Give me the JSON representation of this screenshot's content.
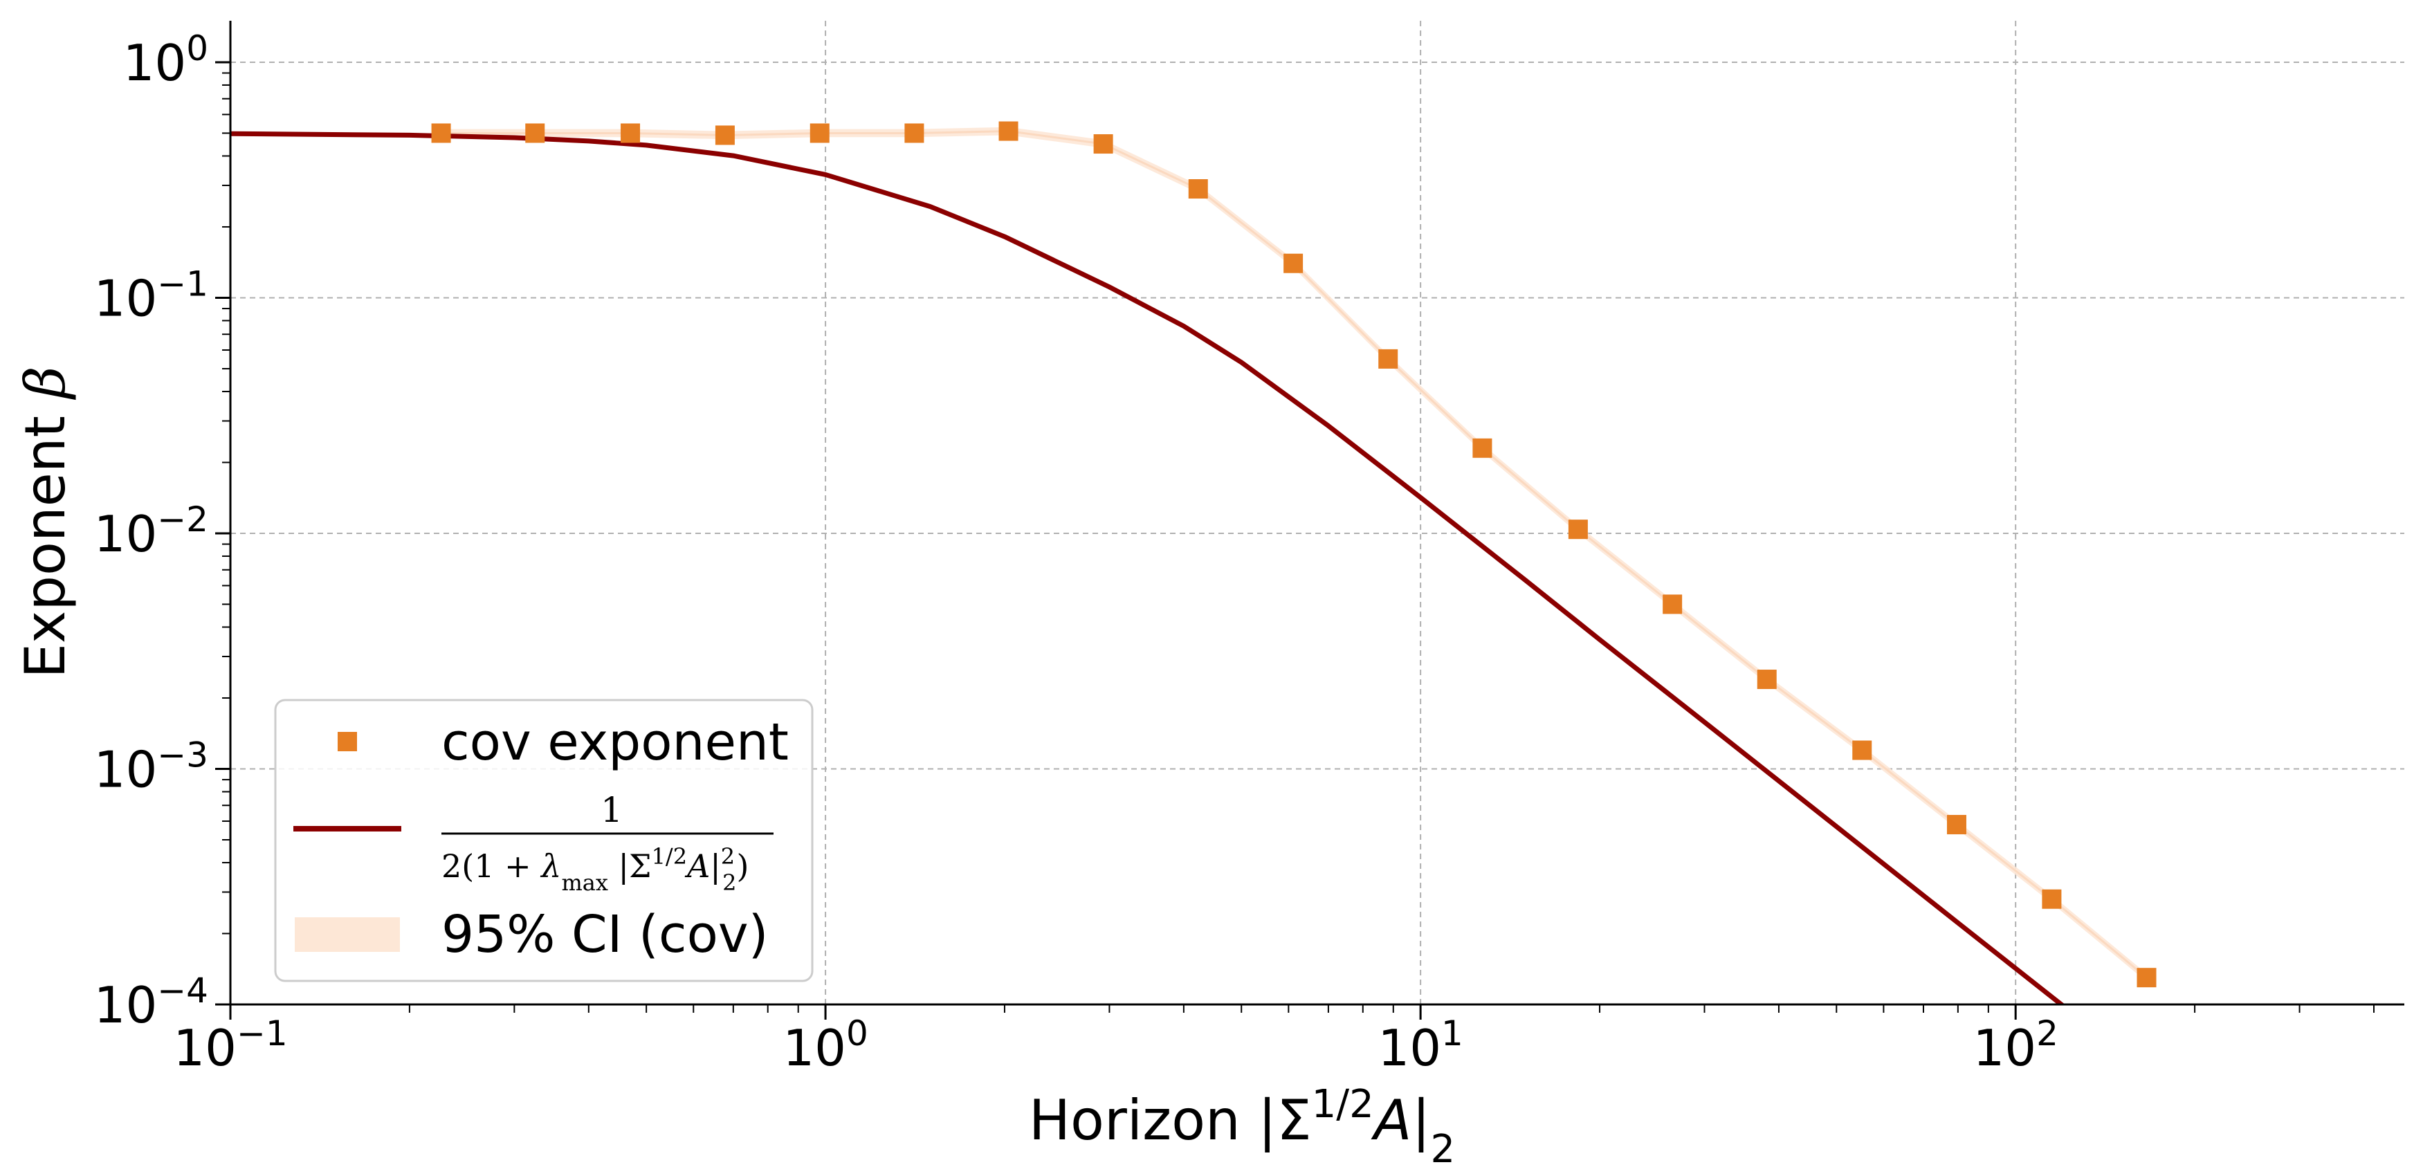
{
  "chart_data": {
    "type": "line",
    "xscale": "log",
    "yscale": "log",
    "xlabel": "Horizon |Σ1/2A|2",
    "ylabel": "Exponent β",
    "xlim": [
      0.1,
      450
    ],
    "ylim": [
      0.0001,
      1.5
    ],
    "x_ticks": [
      "10−1",
      "100",
      "101",
      "102"
    ],
    "y_ticks": [
      "10−4",
      "10−3",
      "10−2",
      "10−1",
      "100"
    ],
    "grid": true,
    "legend_position": "lower-left",
    "series": [
      {
        "name": "cov exponent",
        "kind": "markers",
        "marker": "square",
        "color": "#e67e22",
        "x": [
          0.226,
          0.325,
          0.47,
          0.678,
          0.978,
          1.41,
          2.03,
          2.93,
          4.23,
          6.11,
          8.82,
          12.7,
          18.4,
          26.5,
          38.2,
          55.2,
          79.6,
          115,
          166
        ],
        "y": [
          0.5,
          0.5,
          0.5,
          0.49,
          0.5,
          0.5,
          0.51,
          0.45,
          0.29,
          0.14,
          0.055,
          0.023,
          0.0104,
          0.005,
          0.0024,
          0.0012,
          0.00058,
          0.00028,
          0.00013
        ]
      },
      {
        "name": "1 / 2(1 + λmax |Σ1/2A|22)",
        "kind": "line",
        "color": "#8b0000",
        "x": [
          0.1,
          0.2,
          0.3,
          0.4,
          0.5,
          0.7,
          1,
          1.5,
          2,
          3,
          4,
          5,
          7,
          10,
          15,
          20,
          30,
          50,
          80,
          130
        ],
        "y": [
          0.4975,
          0.4901,
          0.4785,
          0.463,
          0.4444,
          0.401,
          0.3333,
          0.2439,
          0.1818,
          0.1111,
          0.0758,
          0.0532,
          0.0286,
          0.0142,
          0.00633,
          0.00354,
          0.00158,
          0.000569,
          0.000222,
          8.43e-05
        ]
      },
      {
        "name": "95% CI (cov)",
        "kind": "band",
        "color": "#fde7d6"
      }
    ],
    "legend": {
      "entry1": "cov exponent",
      "entry3": "95% CI (cov)"
    }
  }
}
